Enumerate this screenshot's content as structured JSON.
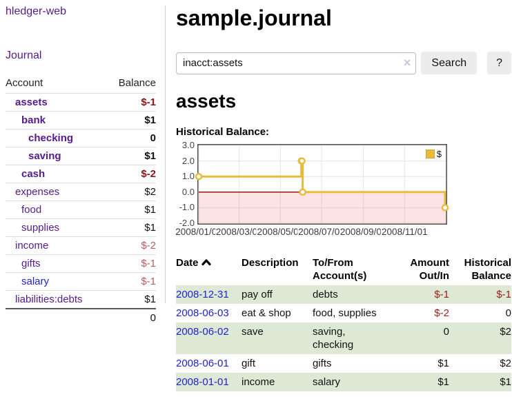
{
  "app": {
    "title": "hledger-web"
  },
  "sidebar": {
    "journal_link": "Journal",
    "accounts": {
      "header_account": "Account",
      "header_balance": "Balance",
      "rows": [
        {
          "name": "assets",
          "balance": "$-1"
        },
        {
          "name": "bank",
          "balance": "$1"
        },
        {
          "name": "checking",
          "balance": "0"
        },
        {
          "name": "saving",
          "balance": "$1"
        },
        {
          "name": "cash",
          "balance": "$-2"
        },
        {
          "name": "expenses",
          "balance": "$2"
        },
        {
          "name": "food",
          "balance": "$1"
        },
        {
          "name": "supplies",
          "balance": "$1"
        },
        {
          "name": "income",
          "balance": "$-2"
        },
        {
          "name": "gifts",
          "balance": "$-1"
        },
        {
          "name": "salary",
          "balance": "$-1"
        },
        {
          "name": "liabilities:debts",
          "balance": "$1"
        }
      ],
      "total": "0"
    }
  },
  "main": {
    "title": "sample.journal",
    "search": {
      "value": "inacct:assets",
      "clear_icon": "×",
      "search_label": "Search",
      "help_label": "?"
    },
    "heading": "assets",
    "chart_title": "Historical Balance:"
  },
  "chart_data": {
    "type": "line",
    "step": true,
    "title": "Historical Balance:",
    "series": [
      {
        "name": "$",
        "color": "#e8bb3d",
        "points": [
          [
            "2008-01-01",
            1
          ],
          [
            "2008-06-01",
            2
          ],
          [
            "2008-06-02",
            2
          ],
          [
            "2008-06-03",
            0
          ],
          [
            "2008-12-31",
            -1
          ]
        ]
      }
    ],
    "ylim": [
      -2,
      3
    ],
    "yticks": [
      3,
      2,
      1,
      0,
      -1,
      -2
    ],
    "xlim": [
      "2008-01-01",
      "2009-01-01"
    ],
    "xticks": [
      {
        "date": "2008-01-01",
        "label": "2008/01/01"
      },
      {
        "date": "2008-03-01",
        "label": "2008/03/01"
      },
      {
        "date": "2008-05-01",
        "label": "2008/05/01"
      },
      {
        "date": "2008-07-01",
        "label": "2008/07/01"
      },
      {
        "date": "2008-09-01",
        "label": "2008/09/01"
      },
      {
        "date": "2008-11-01",
        "label": "2008/11/01"
      },
      {
        "date": "2009-01-01",
        "label": ""
      }
    ],
    "legend": {
      "label": "$",
      "position": "top-right"
    },
    "grid": true,
    "zero_line_color": "#8b0000",
    "negative_region_fill": "rgba(245,80,80,0.16)"
  },
  "register": {
    "headers": {
      "date": "Date",
      "description": "Description",
      "accounts": "To/From Account(s)",
      "amount": "Amount Out/In",
      "balance": "Historical Balance"
    },
    "rows": [
      {
        "date": "2008-12-31",
        "description": "pay off",
        "accounts": "debts",
        "amount": "$-1",
        "balance": "$-1"
      },
      {
        "date": "2008-06-03",
        "description": "eat & shop",
        "accounts": "food, supplies",
        "amount": "$-2",
        "balance": "0"
      },
      {
        "date": "2008-06-02",
        "description": "save",
        "accounts": "saving, checking",
        "amount": "0",
        "balance": "$2"
      },
      {
        "date": "2008-06-01",
        "description": "gift",
        "accounts": "gifts",
        "amount": "$1",
        "balance": "$2"
      },
      {
        "date": "2008-01-01",
        "description": "income",
        "accounts": "salary",
        "amount": "$1",
        "balance": "$1"
      }
    ]
  }
}
